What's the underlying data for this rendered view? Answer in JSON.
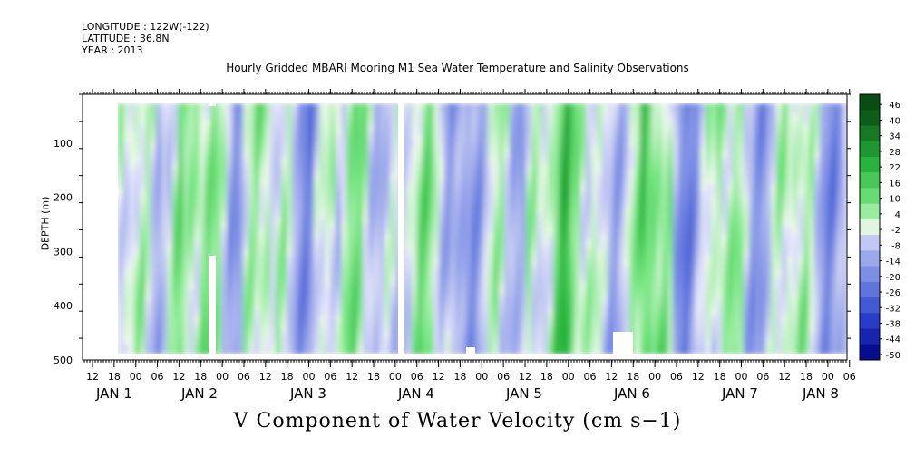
{
  "header": {
    "longitude": "LONGITUDE : 122W(-122)",
    "latitude": "LATITUDE : 36.8N",
    "year": "YEAR : 2013"
  },
  "title": "Hourly Gridded MBARI Mooring M1 Sea Water Temperature and Salinity Observations",
  "bottom_title": "V Component of Water Velocity (cm s−1)",
  "colors": {
    "negative_dark": "#000080",
    "zero": "#ffffff",
    "positive_dark": "#0b4d14"
  },
  "chart_data": {
    "type": "heatmap",
    "xlabel": "",
    "ylabel": "DEPTH (m)",
    "y_ticks": [
      100,
      200,
      300,
      400,
      500
    ],
    "ylim": [
      500,
      10
    ],
    "x_hour_ticks": [
      "12",
      "18",
      "00",
      "06",
      "12",
      "18",
      "00",
      "06",
      "12",
      "18",
      "00",
      "06",
      "12",
      "18",
      "00",
      "06",
      "12",
      "18",
      "00",
      "06",
      "12",
      "18",
      "00",
      "06",
      "12",
      "18",
      "00",
      "06",
      "12",
      "18",
      "00",
      "06",
      "12",
      "18",
      "00",
      "06"
    ],
    "x_day_labels": [
      "JAN  1",
      "JAN  2",
      "JAN  3",
      "JAN  4",
      "JAN  5",
      "JAN  6",
      "JAN  7",
      "JAN  8"
    ],
    "colorbar_levels": [
      "46",
      "40",
      "34",
      "28",
      "22",
      "16",
      "10",
      "4",
      "-2",
      "-8",
      "-14",
      "-20",
      "-26",
      "-32",
      "-38",
      "-44",
      "-50"
    ],
    "value_range": [
      -50,
      46
    ]
  }
}
